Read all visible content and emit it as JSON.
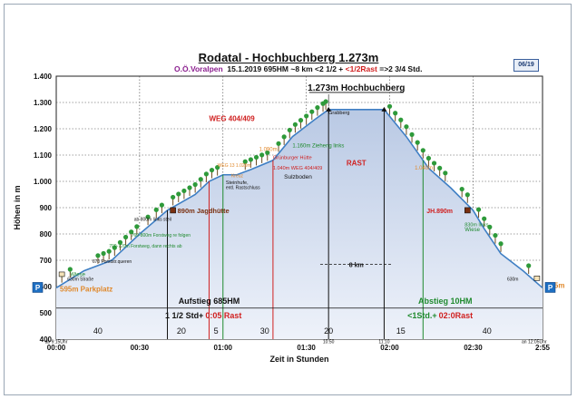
{
  "header": {
    "title": "Rodatal - Hochbuchberg 1.273m",
    "region": "O.Ö.Voralpen",
    "details": "15.1.2019   695HM   ~8 km   <2 1/2 +",
    "rest_part": "<1/2Rast",
    "end_part": "=>2 3/4 Std.",
    "badge": "06/19"
  },
  "chart_data": {
    "type": "area",
    "title": "Rodatal - Hochbuchberg 1.273m",
    "xlabel": "Zeit in Stunden",
    "ylabel": "Höhen in m",
    "xlim": [
      0,
      175
    ],
    "ylim": [
      400,
      1400
    ],
    "x_ticks": [
      {
        "min": 0,
        "label": "00:00"
      },
      {
        "min": 30,
        "label": "00:30"
      },
      {
        "min": 60,
        "label": "01:00"
      },
      {
        "min": 90,
        "label": "01:30"
      },
      {
        "min": 120,
        "label": "02:00"
      },
      {
        "min": 150,
        "label": "02:30"
      },
      {
        "min": 175,
        "label": "2:55"
      }
    ],
    "y_ticks": [
      400,
      500,
      600,
      700,
      800,
      900,
      1000,
      1100,
      1200,
      1300,
      1400
    ],
    "profile": [
      {
        "min": 0,
        "alt": 595
      },
      {
        "min": 10,
        "alt": 660
      },
      {
        "min": 20,
        "alt": 700
      },
      {
        "min": 30,
        "alt": 800
      },
      {
        "min": 40,
        "alt": 890
      },
      {
        "min": 50,
        "alt": 950
      },
      {
        "min": 55,
        "alt": 1000
      },
      {
        "min": 60,
        "alt": 1025
      },
      {
        "min": 65,
        "alt": 1025
      },
      {
        "min": 70,
        "alt": 1045
      },
      {
        "min": 78,
        "alt": 1080
      },
      {
        "min": 85,
        "alt": 1170
      },
      {
        "min": 93,
        "alt": 1235
      },
      {
        "min": 98,
        "alt": 1273
      },
      {
        "min": 118,
        "alt": 1273
      },
      {
        "min": 126,
        "alt": 1170
      },
      {
        "min": 134,
        "alt": 1050
      },
      {
        "min": 142,
        "alt": 975
      },
      {
        "min": 150,
        "alt": 890
      },
      {
        "min": 154,
        "alt": 820
      },
      {
        "min": 160,
        "alt": 725
      },
      {
        "min": 168,
        "alt": 660
      },
      {
        "min": 175,
        "alt": 595
      }
    ],
    "rest": {
      "start_min": 98,
      "end_min": 118,
      "label": "RAST"
    },
    "peak_label": "1.273m Hochbuchberg",
    "trees_min": [
      2,
      5,
      15,
      17,
      19,
      21,
      23,
      25,
      27,
      29,
      33,
      36,
      38,
      42,
      44,
      46,
      48,
      50,
      52,
      54,
      56,
      58,
      68,
      70,
      72,
      74,
      76,
      80,
      82,
      84,
      86,
      88,
      90,
      92,
      94,
      96,
      97,
      120,
      122,
      124,
      126,
      128,
      130,
      132,
      134,
      136,
      138,
      140,
      146,
      148,
      152,
      154,
      156,
      158,
      160,
      170
    ],
    "annotations": [
      {
        "min": 0,
        "alt": 595,
        "text": "595m Parkplatz",
        "color": "#e0882a",
        "size": 8
      },
      {
        "min": 42,
        "alt": 890,
        "text": "890m Jagdhütte",
        "color": "#7a3010",
        "size": 7.5
      },
      {
        "min": 55,
        "alt": 1230,
        "text": "WEG 404/409",
        "color": "#d02020",
        "size": 8
      },
      {
        "min": 85,
        "alt": 1130,
        "text": "1.160m Zieheng links",
        "color": "#1f8a2e",
        "size": 6
      },
      {
        "min": 73,
        "alt": 1115,
        "text": "1.090m",
        "color": "#e0882a",
        "size": 6
      },
      {
        "min": 78,
        "alt": 1085,
        "text": "Grünburger Hütte",
        "color": "#d02020",
        "size": 5.5
      },
      {
        "min": 58,
        "alt": 1055,
        "text": "WEG 13 1.020m",
        "color": "#e0882a",
        "size": 5
      },
      {
        "min": 78,
        "alt": 1045,
        "text": "1.040m  WEG 404/409",
        "color": "#d02020",
        "size": 5.5
      },
      {
        "min": 82,
        "alt": 1010,
        "text": "Sulzboden",
        "color": "#111111",
        "size": 6.5
      },
      {
        "min": 61,
        "alt": 990,
        "text": "Steinhufe,",
        "color": "#111111",
        "size": 5.5
      },
      {
        "min": 61,
        "alt": 970,
        "text": "entl. Rastschluss",
        "color": "#111111",
        "size": 5
      },
      {
        "min": 63,
        "alt": 1015,
        "text": "Kreuz",
        "color": "#e0882a",
        "size": 5
      },
      {
        "min": 98,
        "alt": 1255,
        "text": "Grabberg",
        "color": "#111111",
        "size": 5.5
      },
      {
        "min": 129,
        "alt": 1045,
        "text": "1.040m",
        "color": "#e0882a",
        "size": 6
      },
      {
        "min": 143,
        "alt": 890,
        "text": "JH.890m",
        "color": "#d02020",
        "size": 7
      },
      {
        "min": 147,
        "alt": 830,
        "text": "830m links",
        "color": "#1f8a2e",
        "size": 5.5
      },
      {
        "min": 147,
        "alt": 810,
        "text": "Wiese",
        "color": "#1f8a2e",
        "size": 6
      },
      {
        "min": 28,
        "alt": 850,
        "text": "ab 800m links steil",
        "color": "#111111",
        "size": 5
      },
      {
        "min": 27,
        "alt": 790,
        "text": "760-800m Forstweg re folgen",
        "color": "#1f8a2e",
        "size": 5
      },
      {
        "min": 19,
        "alt": 748,
        "text": "700-720m Forstweg, dann rechts ab",
        "color": "#1f8a2e",
        "size": 5
      },
      {
        "min": 5,
        "alt": 640,
        "text": "Wiese",
        "color": "#1f8a2e",
        "size": 6
      },
      {
        "min": 13,
        "alt": 690,
        "text": "670 Forststr.queren",
        "color": "#111111",
        "size": 5
      },
      {
        "min": 4,
        "alt": 622,
        "text": "630m Straße",
        "color": "#111111",
        "size": 5
      },
      {
        "min": 167,
        "alt": 622,
        "text": "630m",
        "color": "#111111",
        "size": 5
      },
      {
        "min": 175,
        "alt": 595,
        "text": "595m",
        "color": "#e0882a",
        "size": 8
      }
    ],
    "distance_label": "8 km",
    "ascent_label": "Aufstieg 685HM",
    "ascent_time": "1 1/2 Std+",
    "ascent_rest": "0:05 Rast",
    "descent_label": "Abstieg 10HM",
    "descent_time": "<1Std.+",
    "descent_rest": "02:0Rast",
    "segments": [
      {
        "min": 15,
        "label": "40",
        "color": "#111111"
      },
      {
        "min": 45,
        "label": "20",
        "color": "#111111"
      },
      {
        "min": 57.5,
        "label": "5",
        "color": "#d02020"
      },
      {
        "min": 75,
        "label": "30",
        "color": "#111111"
      },
      {
        "min": 98,
        "label": "20",
        "color": "#d02020"
      },
      {
        "min": 124,
        "label": "15",
        "color": "#111111"
      },
      {
        "min": 155,
        "label": "40",
        "color": "#111111"
      }
    ],
    "small_time_labels": [
      {
        "min": 0,
        "label": "ab 9:15Uhr"
      },
      {
        "min": 98,
        "label": "10:50"
      },
      {
        "min": 118,
        "label": "11:10"
      },
      {
        "min": 172,
        "label": "an 12:05Uhr"
      }
    ],
    "parking_marker": "P"
  }
}
